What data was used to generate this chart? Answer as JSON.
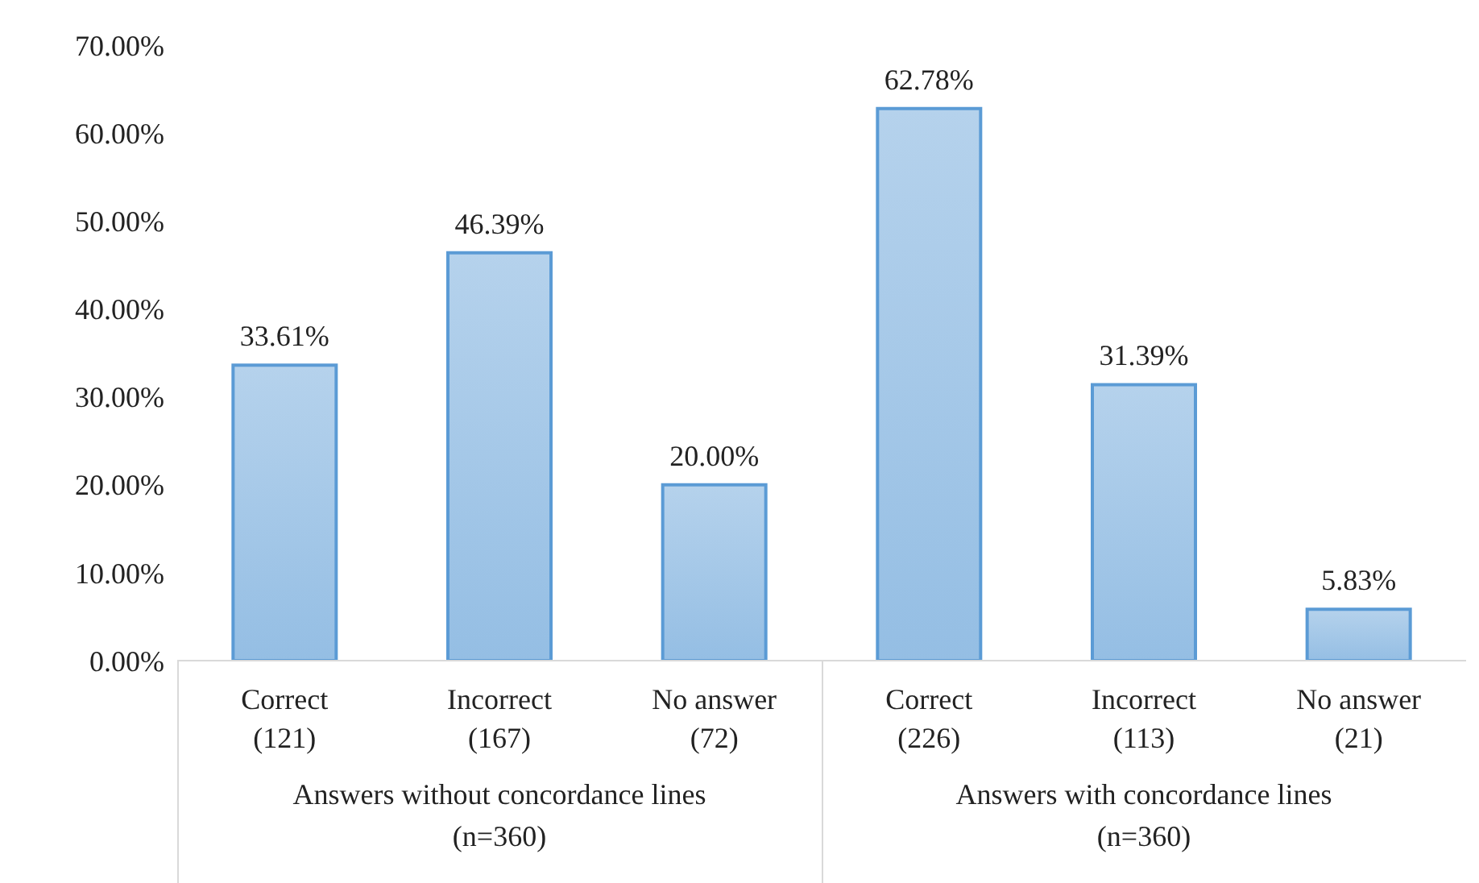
{
  "chart_data": {
    "type": "bar",
    "categories": [
      "Correct\n(121)",
      "Incorrect\n(167)",
      "No answer\n(72)",
      "Correct\n(226)",
      "Incorrect\n(113)",
      "No answer\n(21)"
    ],
    "values": [
      33.61,
      46.39,
      20.0,
      62.78,
      31.39,
      5.83
    ],
    "value_labels": [
      "33.61%",
      "46.39%",
      "20.00%",
      "62.78%",
      "31.39%",
      "5.83%"
    ],
    "color": "#5b9bd5",
    "ylim": [
      0,
      70
    ],
    "yticks": [
      {
        "value": 0,
        "label": "0.00%"
      },
      {
        "value": 10,
        "label": "10.00%"
      },
      {
        "value": 20,
        "label": "20.00%"
      },
      {
        "value": 30,
        "label": "30.00%"
      },
      {
        "value": 40,
        "label": "40.00%"
      },
      {
        "value": 50,
        "label": "50.00%"
      },
      {
        "value": 60,
        "label": "60.00%"
      },
      {
        "value": 70,
        "label": "70.00%"
      }
    ],
    "grid": false,
    "legend": false,
    "annotations": [
      "Answers without concordance lines\n(n=360)",
      "Answers with concordance lines\n(n=360)"
    ]
  }
}
